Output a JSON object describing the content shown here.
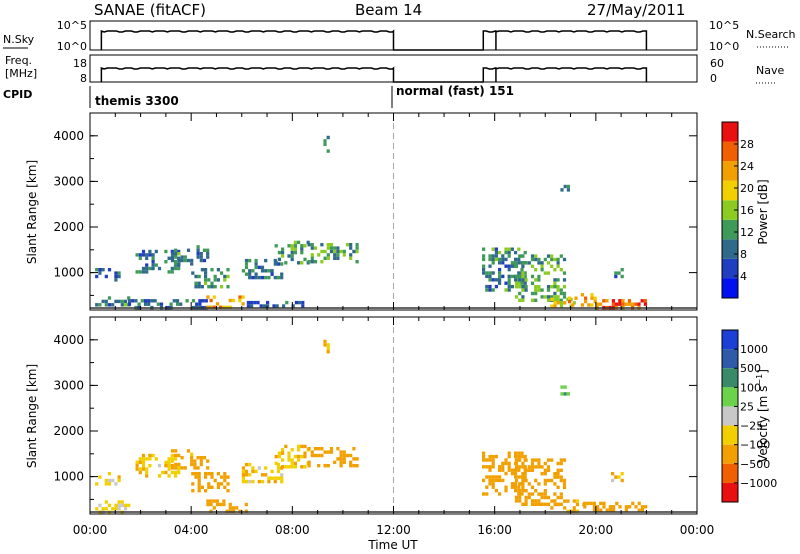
{
  "header": {
    "station": "SANAE (fitACF)",
    "beam": "Beam 14",
    "date": "27/May/2011"
  },
  "side_labels": {
    "nsky": "N.Sky",
    "freq_line1": "Freq.",
    "freq_line2": "[MHz]",
    "cpid": "CPID",
    "nsearch": "N.Search",
    "nave": "Nave"
  },
  "panel_ticks": {
    "nsky": [
      "10^5",
      "10^0"
    ],
    "nsearch": [
      "10^5",
      "10^0"
    ],
    "freq": [
      "18",
      "8"
    ],
    "nave": [
      "60",
      "0"
    ]
  },
  "cpid_segments": [
    "themis 3300",
    "normal (fast) 151"
  ],
  "chart_data": [
    {
      "type": "line",
      "name": "status-panels",
      "x_unit": "hours UT",
      "operating_intervals": [
        [
          0.45,
          12.0
        ],
        [
          15.55,
          16.05
        ],
        [
          16.05,
          22.0
        ]
      ],
      "nsky_level": "high",
      "freq_level": "high",
      "nave_level": "high"
    },
    {
      "type": "heatmap",
      "name": "power",
      "ylabel": "Slant Range [km]",
      "xlabel": "",
      "xlim": [
        0,
        24
      ],
      "ylim": [
        180,
        4500
      ],
      "x_ticks": [
        "00:00",
        "04:00",
        "08:00",
        "12:00",
        "16:00",
        "20:00",
        "00:00"
      ],
      "y_ticks": [
        1000,
        2000,
        3000,
        4000
      ],
      "colorbar": {
        "label": "Power [dB]",
        "ticks": [
          "4",
          "8",
          "12",
          "16",
          "20",
          "24",
          "28"
        ],
        "range": [
          0,
          30
        ]
      },
      "vertical_marker_x": 12,
      "regions": [
        {
          "x": [
            0.2,
            1.5
          ],
          "y": [
            300,
            480
          ],
          "value": 10
        },
        {
          "x": [
            0.2,
            1.2
          ],
          "y": [
            850,
            1100
          ],
          "value": 8
        },
        {
          "x": [
            1.8,
            3.5
          ],
          "y": [
            1050,
            1500
          ],
          "value": 9
        },
        {
          "x": [
            3.2,
            4.6
          ],
          "y": [
            1200,
            1600
          ],
          "value": 10
        },
        {
          "x": [
            4.0,
            5.5
          ],
          "y": [
            700,
            1100
          ],
          "value": 11
        },
        {
          "x": [
            1.5,
            4.6
          ],
          "y": [
            250,
            420
          ],
          "value": 9
        },
        {
          "x": [
            4.6,
            6.2
          ],
          "y": [
            250,
            500
          ],
          "value": 22
        },
        {
          "x": [
            6.2,
            8.5
          ],
          "y": [
            250,
            380
          ],
          "value": 7
        },
        {
          "x": [
            6.0,
            7.6
          ],
          "y": [
            900,
            1300
          ],
          "value": 9
        },
        {
          "x": [
            7.3,
            8.6
          ],
          "y": [
            1200,
            1700
          ],
          "value": 11
        },
        {
          "x": [
            8.6,
            10.5
          ],
          "y": [
            1250,
            1650
          ],
          "value": 12
        },
        {
          "x": [
            9.1,
            9.4
          ],
          "y": [
            3650,
            4000
          ],
          "value": 8
        },
        {
          "x": [
            15.5,
            17.2
          ],
          "y": [
            600,
            1550
          ],
          "value": 10
        },
        {
          "x": [
            16.8,
            18.8
          ],
          "y": [
            400,
            1400
          ],
          "value": 13
        },
        {
          "x": [
            18.2,
            19.2
          ],
          "y": [
            250,
            450
          ],
          "value": 18
        },
        {
          "x": [
            18.9,
            20.0
          ],
          "y": [
            300,
            550
          ],
          "value": 21
        },
        {
          "x": [
            20.0,
            22.0
          ],
          "y": [
            230,
            420
          ],
          "value": 25
        },
        {
          "x": [
            18.6,
            18.9
          ],
          "y": [
            2800,
            3000
          ],
          "value": 10
        },
        {
          "x": [
            20.6,
            21.0
          ],
          "y": [
            950,
            1100
          ],
          "value": 9
        }
      ]
    },
    {
      "type": "heatmap",
      "name": "velocity",
      "ylabel": "Slant Range [km]",
      "xlabel": "Time UT",
      "xlim": [
        0,
        24
      ],
      "ylim": [
        180,
        4500
      ],
      "x_ticks": [
        "00:00",
        "04:00",
        "08:00",
        "12:00",
        "16:00",
        "20:00",
        "00:00"
      ],
      "y_ticks": [
        1000,
        2000,
        3000,
        4000
      ],
      "colorbar": {
        "label": "Velocity [m s^-1]",
        "ticks": [
          "1000",
          "500",
          "100",
          "25",
          "−25",
          "−100",
          "−500",
          "−1000"
        ],
        "colors": [
          "#1c3fd6",
          "#2f5aa8",
          "#3a8a6a",
          "#6cd24a",
          "#c8c8c8",
          "#f2d000",
          "#f2a000",
          "#f06000",
          "#e81010"
        ]
      },
      "vertical_marker_x": 12,
      "regions": [
        {
          "x": [
            0.2,
            1.5
          ],
          "y": [
            250,
            480
          ],
          "value": -40
        },
        {
          "x": [
            0.2,
            1.2
          ],
          "y": [
            850,
            1100
          ],
          "value": -60
        },
        {
          "x": [
            1.8,
            3.5
          ],
          "y": [
            1050,
            1500
          ],
          "value": -80
        },
        {
          "x": [
            3.2,
            4.6
          ],
          "y": [
            1200,
            1600
          ],
          "value": -120
        },
        {
          "x": [
            4.0,
            5.5
          ],
          "y": [
            700,
            1100
          ],
          "value": -200
        },
        {
          "x": [
            4.6,
            6.2
          ],
          "y": [
            250,
            500
          ],
          "value": -150
        },
        {
          "x": [
            6.0,
            7.6
          ],
          "y": [
            900,
            1300
          ],
          "value": -60
        },
        {
          "x": [
            7.3,
            8.6
          ],
          "y": [
            1200,
            1700
          ],
          "value": -90
        },
        {
          "x": [
            8.6,
            10.5
          ],
          "y": [
            1250,
            1650
          ],
          "value": -250
        },
        {
          "x": [
            9.1,
            9.4
          ],
          "y": [
            3650,
            4000
          ],
          "value": -80
        },
        {
          "x": [
            15.5,
            17.2
          ],
          "y": [
            600,
            1550
          ],
          "value": -300
        },
        {
          "x": [
            16.8,
            18.8
          ],
          "y": [
            400,
            1400
          ],
          "value": -200
        },
        {
          "x": [
            18.2,
            19.5
          ],
          "y": [
            250,
            500
          ],
          "value": -150
        },
        {
          "x": [
            19.5,
            22.0
          ],
          "y": [
            230,
            450
          ],
          "value": -350
        },
        {
          "x": [
            18.6,
            18.9
          ],
          "y": [
            2800,
            3000
          ],
          "value": 50
        },
        {
          "x": [
            20.6,
            21.0
          ],
          "y": [
            950,
            1100
          ],
          "value": -60
        }
      ]
    }
  ]
}
